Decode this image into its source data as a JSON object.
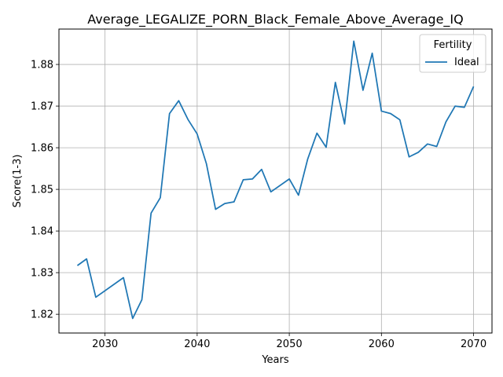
{
  "chart_data": {
    "type": "line",
    "title": "Average_LEGALIZE_PORN_Black_Female_Above_Average_IQ",
    "xlabel": "Years",
    "ylabel": "Score(1-3)",
    "xlim": [
      2025,
      2072
    ],
    "ylim": [
      1.8155,
      1.8885
    ],
    "xticks": [
      2030,
      2040,
      2050,
      2060,
      2070
    ],
    "yticks": [
      1.82,
      1.83,
      1.84,
      1.85,
      1.86,
      1.87,
      1.88
    ],
    "grid": true,
    "legend": {
      "title": "Fertility",
      "position": "top-right"
    },
    "series": [
      {
        "name": "Ideal",
        "color": "#1f77b4",
        "x": [
          2027,
          2028,
          2029,
          2032,
          2033,
          2034,
          2035,
          2036,
          2037,
          2038,
          2039,
          2040,
          2041,
          2042,
          2043,
          2044,
          2045,
          2046,
          2047,
          2048,
          2050,
          2051,
          2052,
          2053,
          2054,
          2055,
          2056,
          2057,
          2058,
          2059,
          2060,
          2061,
          2062,
          2063,
          2064,
          2065,
          2066,
          2067,
          2068,
          2069,
          2070
        ],
        "y": [
          1.8317,
          1.8333,
          1.8241,
          1.8288,
          1.819,
          1.8235,
          1.8443,
          1.848,
          1.8682,
          1.8713,
          1.8668,
          1.8633,
          1.8562,
          1.8452,
          1.8466,
          1.847,
          1.8523,
          1.8525,
          1.8548,
          1.8494,
          1.8525,
          1.8486,
          1.8573,
          1.8635,
          1.8601,
          1.8757,
          1.8657,
          1.8856,
          1.8738,
          1.8827,
          1.8688,
          1.8682,
          1.8667,
          1.8578,
          1.8589,
          1.8609,
          1.8603,
          1.8662,
          1.87,
          1.8697,
          1.8747
        ]
      }
    ]
  }
}
